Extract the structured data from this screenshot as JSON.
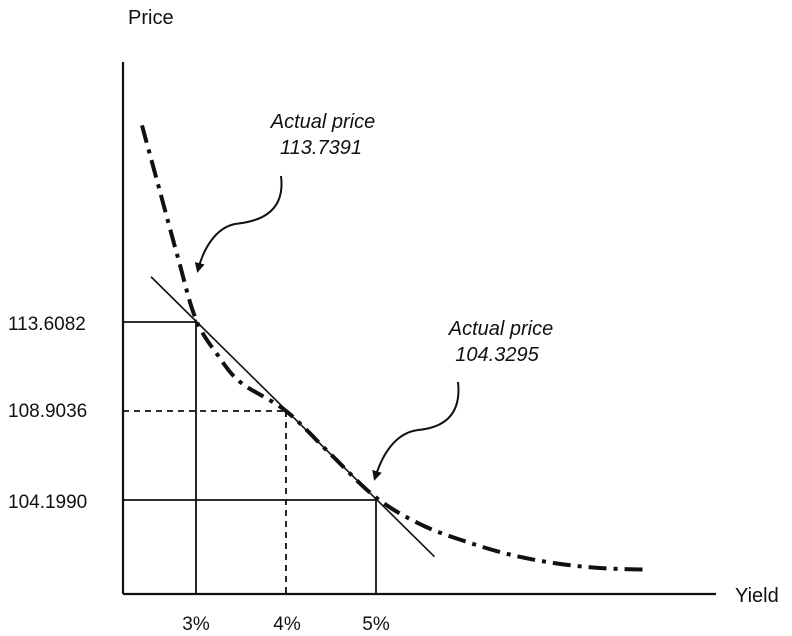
{
  "chart_data": {
    "type": "line",
    "xlabel": "Yield",
    "ylabel": "Price",
    "x_ticks": [
      "3%",
      "4%",
      "5%"
    ],
    "y_ticks": [
      "113.6082",
      "108.9036",
      "104.1990"
    ],
    "series": [
      {
        "style": "dash-dot",
        "points": [
          [
            2.4,
            124.0
          ],
          [
            2.6,
            120.5
          ],
          [
            2.8,
            117.0
          ],
          [
            3.0,
            113.7391
          ],
          [
            3.25,
            111.8
          ],
          [
            3.5,
            110.4
          ],
          [
            4.0,
            108.9036
          ],
          [
            4.5,
            106.6
          ],
          [
            5.0,
            104.3295
          ],
          [
            5.5,
            102.9
          ],
          [
            6.0,
            102.0
          ],
          [
            6.5,
            101.3
          ],
          [
            7.0,
            100.85
          ],
          [
            7.5,
            100.6
          ],
          [
            8.0,
            100.52
          ]
        ]
      },
      {
        "style": "solid",
        "points": [
          [
            2.5,
            116.0
          ],
          [
            5.65,
            101.2
          ]
        ]
      }
    ],
    "guides": [
      {
        "x": 3.0,
        "y": 113.6082,
        "style": "solid"
      },
      {
        "x": 4.0,
        "y": 108.9036,
        "style": "dashed"
      },
      {
        "x": 5.0,
        "y": 104.199,
        "style": "solid"
      }
    ],
    "annotations": [
      {
        "line1": "Actual price",
        "line2": "113.7391",
        "x": 3.0,
        "y": 113.7391
      },
      {
        "line1": "Actual price",
        "line2": "104.3295",
        "x": 5.0,
        "y": 104.3295
      }
    ]
  }
}
